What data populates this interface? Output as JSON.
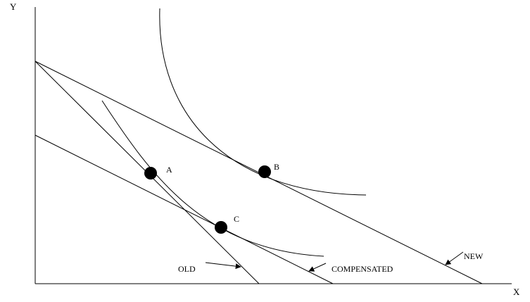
{
  "axes": {
    "y_label": "Y",
    "x_label": "X"
  },
  "budget_lines": {
    "old": "OLD",
    "compensated": "COMPENSATED",
    "new": "NEW"
  },
  "points": {
    "a": "A",
    "b": "B",
    "c": "C"
  },
  "colors": {
    "ink": "#000000",
    "background": "#ffffff"
  }
}
